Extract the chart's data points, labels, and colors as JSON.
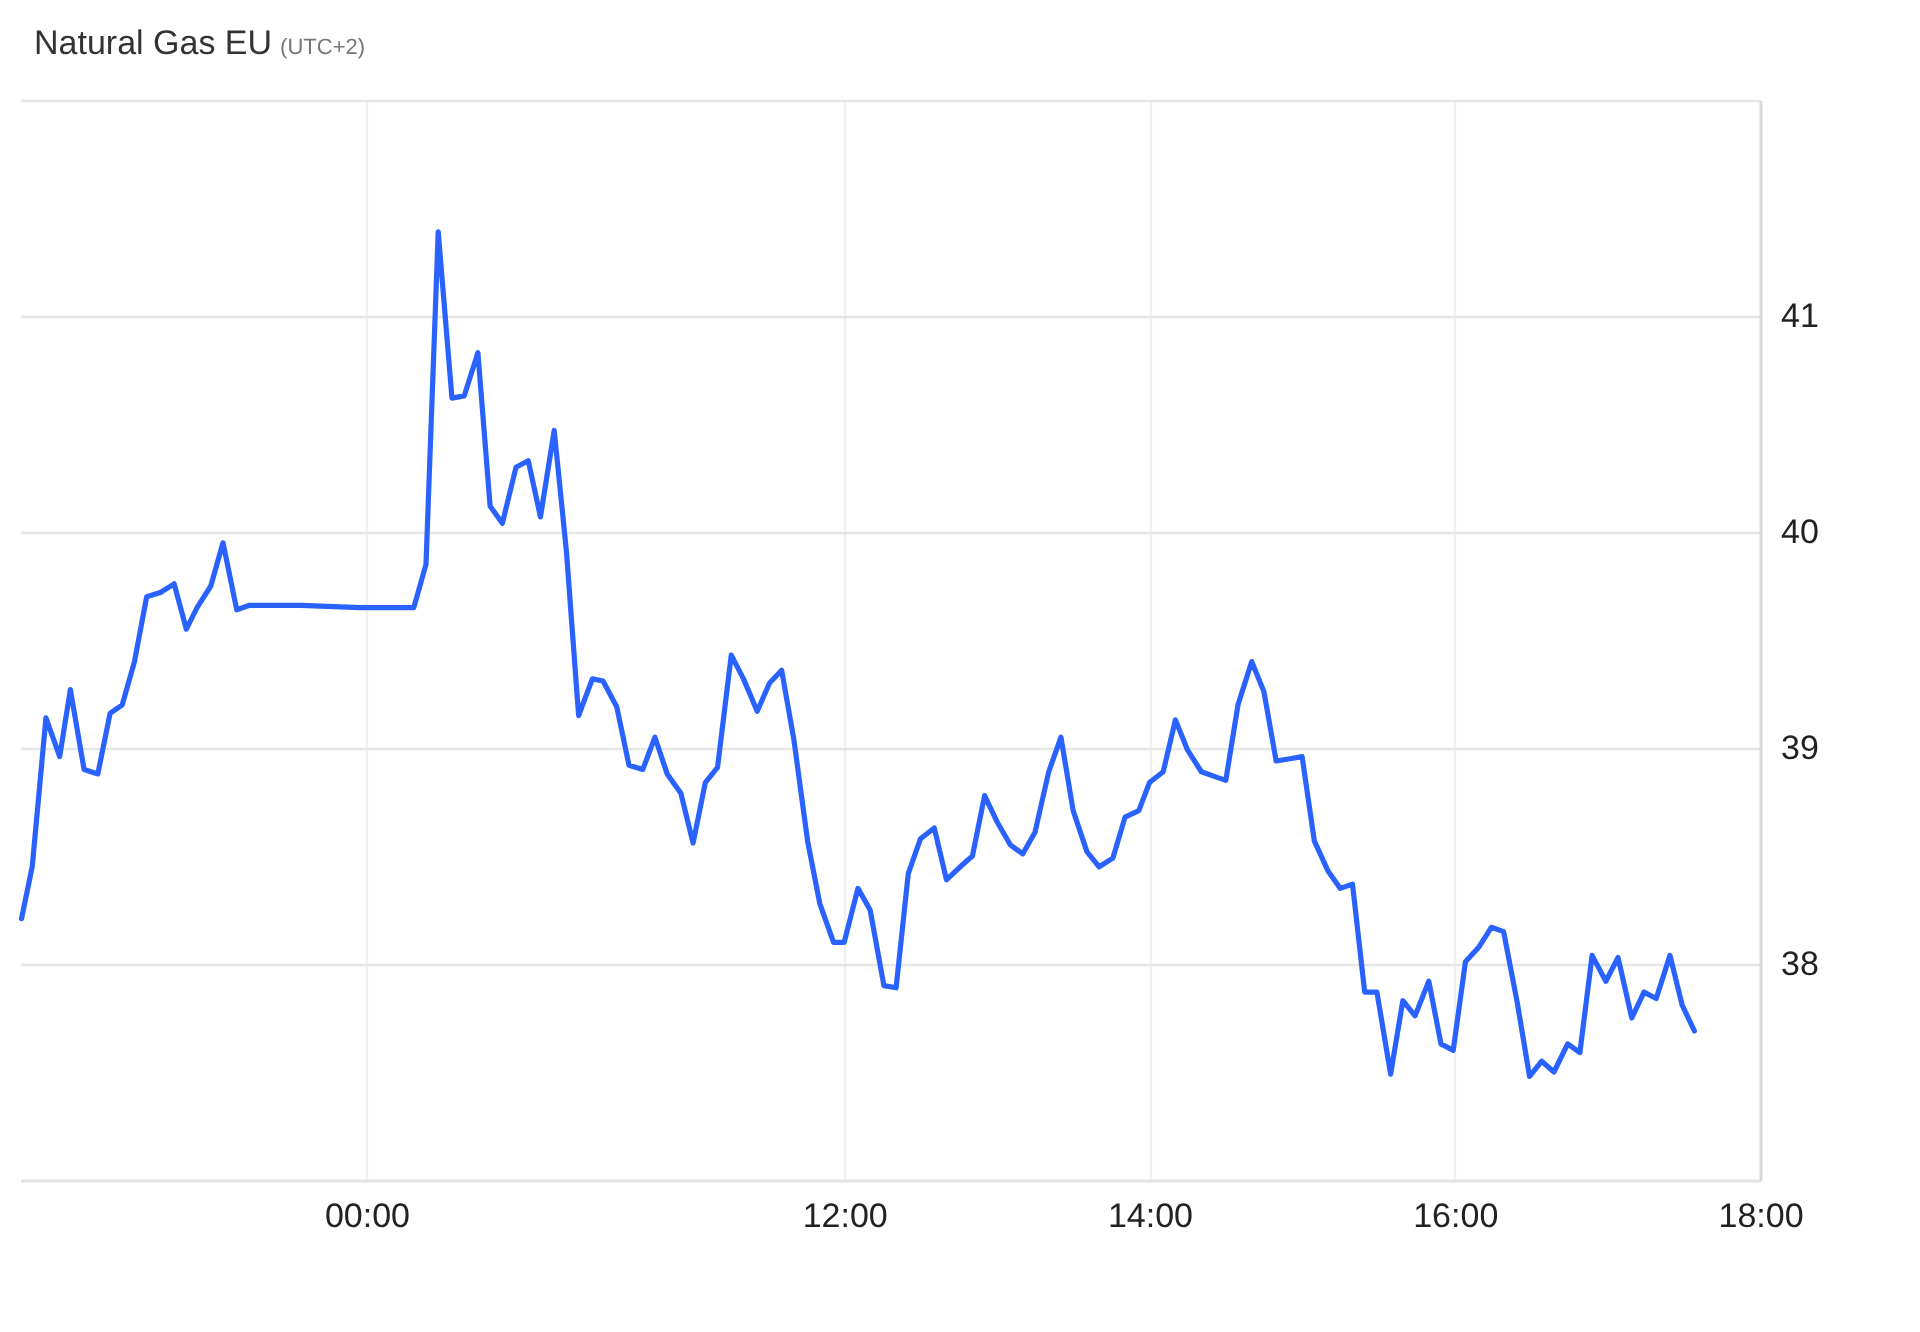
{
  "chart_data": {
    "type": "line",
    "title": "Natural Gas EU",
    "subtitle": "(UTC+2)",
    "x": [
      6.61,
      6.68,
      6.77,
      6.86,
      6.93,
      7.02,
      7.11,
      7.19,
      7.27,
      7.35,
      7.43,
      7.52,
      7.61,
      7.69,
      7.76,
      7.85,
      7.93,
      8.02,
      8.1,
      8.44,
      8.83,
      9.18,
      9.26,
      9.34,
      9.43,
      9.51,
      9.6,
      9.68,
      9.76,
      9.85,
      9.93,
      10.01,
      10.1,
      10.18,
      10.26,
      10.35,
      10.42,
      10.51,
      10.59,
      10.68,
      10.76,
      10.84,
      10.93,
      11.01,
      11.09,
      11.17,
      11.26,
      11.34,
      11.43,
      11.51,
      11.59,
      11.67,
      11.76,
      11.84,
      11.93,
      12.0,
      12.09,
      12.17,
      12.26,
      12.34,
      12.42,
      12.5,
      12.59,
      12.67,
      12.76,
      12.84,
      12.92,
      13.0,
      13.09,
      13.17,
      13.25,
      13.34,
      13.42,
      13.5,
      13.59,
      13.67,
      13.76,
      13.84,
      13.93,
      14.0,
      14.09,
      14.17,
      14.25,
      14.34,
      14.42,
      14.5,
      14.58,
      14.67,
      14.75,
      14.83,
      14.92,
      15.0,
      15.08,
      15.17,
      15.25,
      15.33,
      15.41,
      15.49,
      15.58,
      15.66,
      15.74,
      15.83,
      15.91,
      15.99,
      16.07,
      16.16,
      16.24,
      16.32,
      16.41,
      16.49,
      16.57,
      16.65,
      16.74,
      16.82,
      16.9,
      16.99,
      17.07,
      17.16,
      17.24,
      17.32,
      17.41,
      17.49,
      17.57
    ],
    "series": [
      {
        "color": "#2962ff",
        "values": [
          38.21,
          38.45,
          39.14,
          38.96,
          39.27,
          38.9,
          38.88,
          39.16,
          39.2,
          39.4,
          39.7,
          39.72,
          39.76,
          39.55,
          39.65,
          39.75,
          39.95,
          39.64,
          39.66,
          39.66,
          39.65,
          39.65,
          39.85,
          41.39,
          40.62,
          40.63,
          40.83,
          40.12,
          40.04,
          40.3,
          40.33,
          40.07,
          40.47,
          39.91,
          39.15,
          39.32,
          39.31,
          39.19,
          38.92,
          38.9,
          39.05,
          38.88,
          38.79,
          38.56,
          38.84,
          38.91,
          39.43,
          39.32,
          39.17,
          39.3,
          39.36,
          39.04,
          38.57,
          38.28,
          38.1,
          38.1,
          38.35,
          38.25,
          37.9,
          37.89,
          38.42,
          38.58,
          38.63,
          38.39,
          38.45,
          38.5,
          38.78,
          38.66,
          38.55,
          38.51,
          38.61,
          38.89,
          39.05,
          38.71,
          38.52,
          38.45,
          38.49,
          38.68,
          38.71,
          38.84,
          38.89,
          39.13,
          38.99,
          38.89,
          38.87,
          38.85,
          39.2,
          39.4,
          39.26,
          38.94,
          38.95,
          38.96,
          38.57,
          38.43,
          38.35,
          38.37,
          37.87,
          37.87,
          37.49,
          37.83,
          37.76,
          37.92,
          37.63,
          37.6,
          38.01,
          38.08,
          38.17,
          38.15,
          37.82,
          37.48,
          37.55,
          37.5,
          37.63,
          37.59,
          38.04,
          37.92,
          38.03,
          37.75,
          37.87,
          37.84,
          38.04,
          37.81,
          37.69
        ]
      }
    ],
    "xlim": [
      6.6,
      18
    ],
    "xticks": [
      {
        "value": 8.87,
        "label": "00:00"
      },
      {
        "value": 12,
        "label": "12:00"
      },
      {
        "value": 14,
        "label": "14:00"
      },
      {
        "value": 16,
        "label": "16:00"
      },
      {
        "value": 18,
        "label": "18:00"
      }
    ],
    "ylim": [
      37,
      42
    ],
    "yticks": [
      38,
      39,
      40,
      41,
      {
        "value": 42,
        "label": null
      }
    ],
    "grid": true
  }
}
